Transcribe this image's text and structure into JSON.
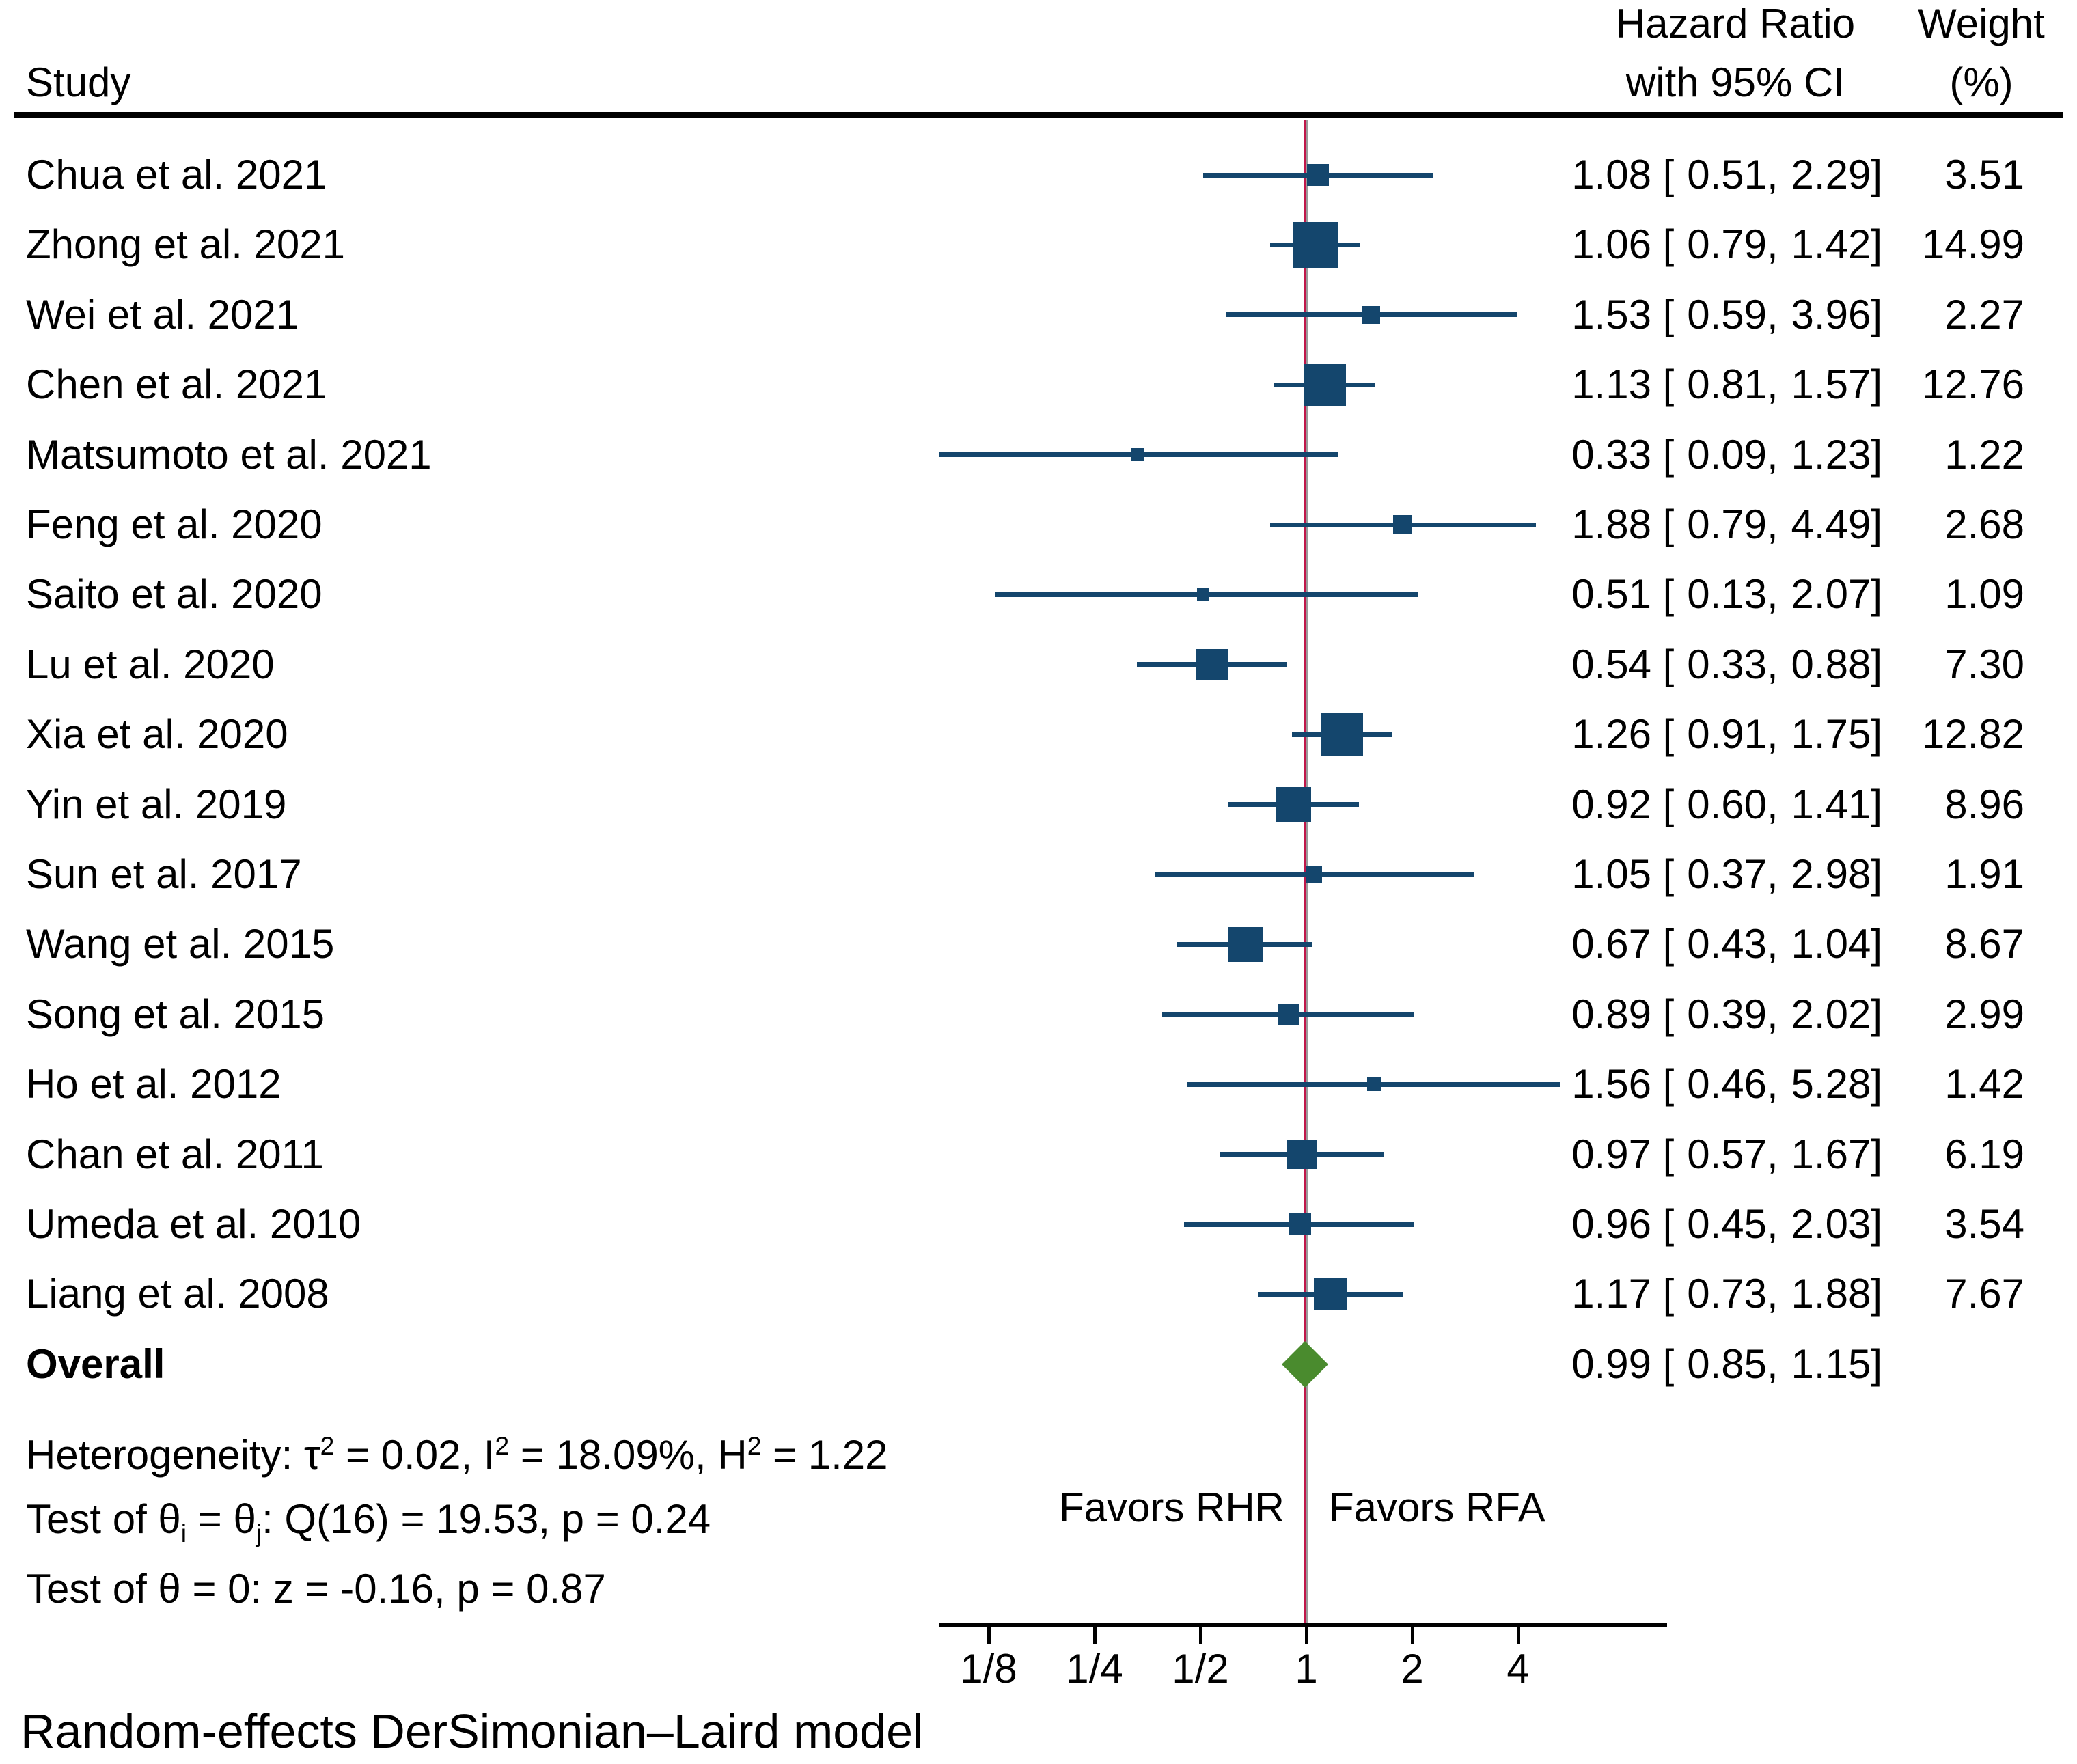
{
  "chart_data": {
    "type": "scatter",
    "subtype": "forest-plot",
    "columns": {
      "study": "Study",
      "hr_line1": "Hazard Ratio",
      "hr_line2": "with 95% CI",
      "weight_line1": "Weight",
      "weight_line2": "(%)"
    },
    "studies": [
      {
        "label": "Chua et al. 2021",
        "hr": "1.08",
        "ci_low": "0.51",
        "ci_high": "2.29",
        "weight": "3.51",
        "hr_val": 1.08,
        "ci_low_val": 0.51,
        "ci_high_val": 2.29,
        "weight_val": 3.51
      },
      {
        "label": "Zhong et al. 2021",
        "hr": "1.06",
        "ci_low": "0.79",
        "ci_high": "1.42",
        "weight": "14.99",
        "hr_val": 1.06,
        "ci_low_val": 0.79,
        "ci_high_val": 1.42,
        "weight_val": 14.99
      },
      {
        "label": "Wei et al. 2021",
        "hr": "1.53",
        "ci_low": "0.59",
        "ci_high": "3.96",
        "weight": "2.27",
        "hr_val": 1.53,
        "ci_low_val": 0.59,
        "ci_high_val": 3.96,
        "weight_val": 2.27
      },
      {
        "label": "Chen et al. 2021",
        "hr": "1.13",
        "ci_low": "0.81",
        "ci_high": "1.57",
        "weight": "12.76",
        "hr_val": 1.13,
        "ci_low_val": 0.81,
        "ci_high_val": 1.57,
        "weight_val": 12.76
      },
      {
        "label": "Matsumoto et al. 2021",
        "hr": "0.33",
        "ci_low": "0.09",
        "ci_high": "1.23",
        "weight": "1.22",
        "hr_val": 0.33,
        "ci_low_val": 0.09,
        "ci_high_val": 1.23,
        "weight_val": 1.22
      },
      {
        "label": "Feng et al. 2020",
        "hr": "1.88",
        "ci_low": "0.79",
        "ci_high": "4.49",
        "weight": "2.68",
        "hr_val": 1.88,
        "ci_low_val": 0.79,
        "ci_high_val": 4.49,
        "weight_val": 2.68
      },
      {
        "label": "Saito et al. 2020",
        "hr": "0.51",
        "ci_low": "0.13",
        "ci_high": "2.07",
        "weight": "1.09",
        "hr_val": 0.51,
        "ci_low_val": 0.13,
        "ci_high_val": 2.07,
        "weight_val": 1.09
      },
      {
        "label": "Lu et al. 2020",
        "hr": "0.54",
        "ci_low": "0.33",
        "ci_high": "0.88",
        "weight": "7.30",
        "hr_val": 0.54,
        "ci_low_val": 0.33,
        "ci_high_val": 0.88,
        "weight_val": 7.3
      },
      {
        "label": "Xia et al. 2020",
        "hr": "1.26",
        "ci_low": "0.91",
        "ci_high": "1.75",
        "weight": "12.82",
        "hr_val": 1.26,
        "ci_low_val": 0.91,
        "ci_high_val": 1.75,
        "weight_val": 12.82
      },
      {
        "label": "Yin et al. 2019",
        "hr": "0.92",
        "ci_low": "0.60",
        "ci_high": "1.41",
        "weight": "8.96",
        "hr_val": 0.92,
        "ci_low_val": 0.6,
        "ci_high_val": 1.41,
        "weight_val": 8.96
      },
      {
        "label": "Sun et al. 2017",
        "hr": "1.05",
        "ci_low": "0.37",
        "ci_high": "2.98",
        "weight": "1.91",
        "hr_val": 1.05,
        "ci_low_val": 0.37,
        "ci_high_val": 2.98,
        "weight_val": 1.91
      },
      {
        "label": "Wang et al. 2015",
        "hr": "0.67",
        "ci_low": "0.43",
        "ci_high": "1.04",
        "weight": "8.67",
        "hr_val": 0.67,
        "ci_low_val": 0.43,
        "ci_high_val": 1.04,
        "weight_val": 8.67
      },
      {
        "label": "Song et al. 2015",
        "hr": "0.89",
        "ci_low": "0.39",
        "ci_high": "2.02",
        "weight": "2.99",
        "hr_val": 0.89,
        "ci_low_val": 0.39,
        "ci_high_val": 2.02,
        "weight_val": 2.99
      },
      {
        "label": "Ho et al. 2012",
        "hr": "1.56",
        "ci_low": "0.46",
        "ci_high": "5.28",
        "weight": "1.42",
        "hr_val": 1.56,
        "ci_low_val": 0.46,
        "ci_high_val": 5.28,
        "weight_val": 1.42
      },
      {
        "label": "Chan et al. 2011",
        "hr": "0.97",
        "ci_low": "0.57",
        "ci_high": "1.67",
        "weight": "6.19",
        "hr_val": 0.97,
        "ci_low_val": 0.57,
        "ci_high_val": 1.67,
        "weight_val": 6.19
      },
      {
        "label": "Umeda et al. 2010",
        "hr": "0.96",
        "ci_low": "0.45",
        "ci_high": "2.03",
        "weight": "3.54",
        "hr_val": 0.96,
        "ci_low_val": 0.45,
        "ci_high_val": 2.03,
        "weight_val": 3.54
      },
      {
        "label": "Liang et al. 2008",
        "hr": "1.17",
        "ci_low": "0.73",
        "ci_high": "1.88",
        "weight": "7.67",
        "hr_val": 1.17,
        "ci_low_val": 0.73,
        "ci_high_val": 1.88,
        "weight_val": 7.67
      }
    ],
    "overall": {
      "label": "Overall",
      "hr": "0.99",
      "ci_low": "0.85",
      "ci_high": "1.15",
      "hr_val": 0.99,
      "ci_low_val": 0.85,
      "ci_high_val": 1.15
    },
    "stats": {
      "heterogeneity": {
        "p1": "Heterogeneity: τ",
        "s1": "2",
        "p2": " = 0.02, I",
        "s2": "2",
        "p3": " = 18.09%, H",
        "s3": "2",
        "p4": " = 1.22"
      },
      "test_thetas": {
        "p1": "Test of θ",
        "sub1": "i",
        "p2": " = θ",
        "sub2": "j",
        "p3": ": Q(16) = 19.53, p = 0.24"
      },
      "test_zero": "Test of θ = 0: z = -0.16, p = 0.87"
    },
    "favors": {
      "left": "Favors RHR",
      "right": "Favors RFA"
    },
    "x_axis": {
      "scale": "log2",
      "refline_value": 1,
      "range": [
        0.09,
        5.28
      ],
      "ticks": [
        {
          "label": "1/8",
          "value": 0.125
        },
        {
          "label": "1/4",
          "value": 0.25
        },
        {
          "label": "1/2",
          "value": 0.5
        },
        {
          "label": "1",
          "value": 1
        },
        {
          "label": "2",
          "value": 2
        },
        {
          "label": "4",
          "value": 4
        }
      ]
    },
    "model_caption": "Random-effects DerSimonian–Laird model",
    "colors": {
      "marker_navy": "#14466d",
      "refline_red": "#c0164a",
      "refline_gray": "#9a9a9a",
      "diamond_green": "#4a8b2e",
      "axis_black": "#000000",
      "text_black": "#000000"
    }
  }
}
